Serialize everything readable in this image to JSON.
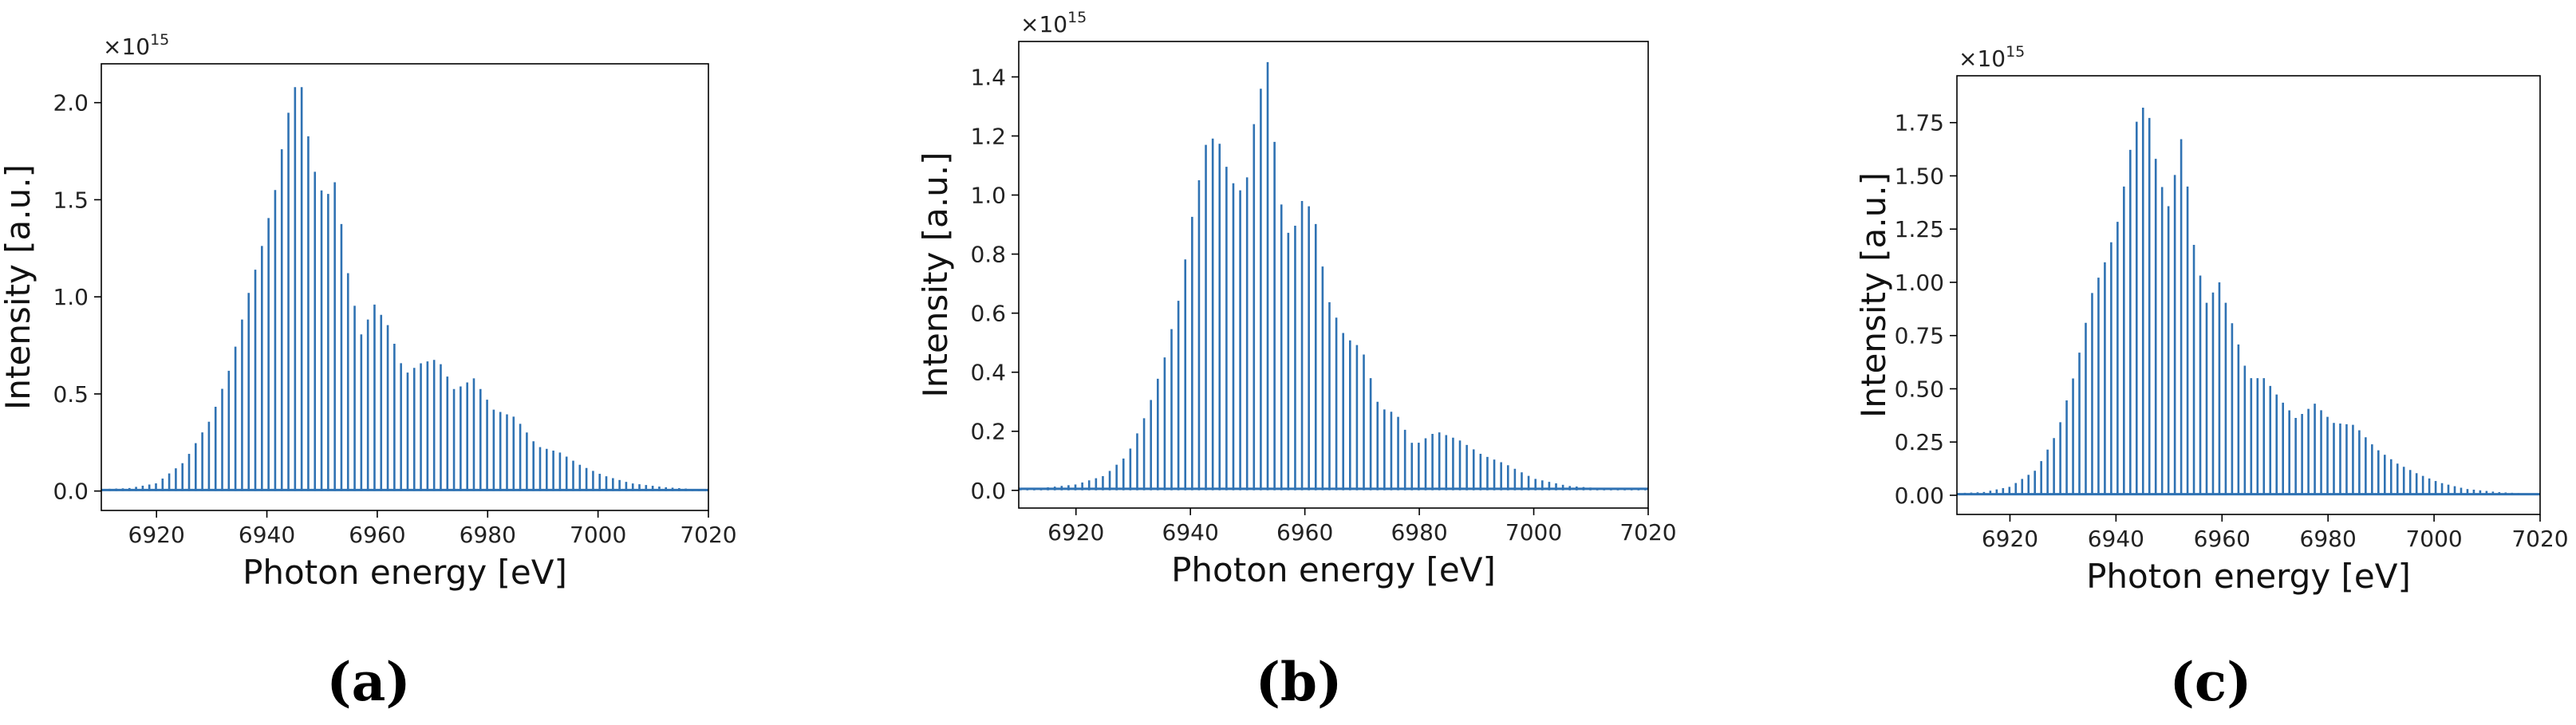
{
  "chart_data": [
    {
      "type": "bar",
      "panel_label": "(a)",
      "xlabel": "Photon energy [eV]",
      "ylabel": "Intensity [a.u.]",
      "y_multiplier": "×10",
      "y_exponent": "15",
      "xlim": [
        6910,
        7020
      ],
      "ylim": [
        -0.1,
        2.2
      ],
      "x_ticks": [
        6920,
        6940,
        6960,
        6980,
        7000,
        7020
      ],
      "y_ticks": [
        "0.0",
        "0.5",
        "1.0",
        "1.5",
        "2.0"
      ],
      "y_tick_values": [
        0.0,
        0.5,
        1.0,
        1.5,
        2.0
      ],
      "line_color": "#2f72b3",
      "spike_spacing_ev": 1.2,
      "peaks": [
        {
          "x": 6910.0,
          "y": 0.01
        },
        {
          "x": 6915.0,
          "y": 0.015
        },
        {
          "x": 6920.0,
          "y": 0.04
        },
        {
          "x": 6925.0,
          "y": 0.15
        },
        {
          "x": 6930.0,
          "y": 0.38
        },
        {
          "x": 6933.5,
          "y": 0.65
        },
        {
          "x": 6936.5,
          "y": 1.0
        },
        {
          "x": 6939.0,
          "y": 1.25
        },
        {
          "x": 6941.5,
          "y": 1.55
        },
        {
          "x": 6943.5,
          "y": 1.9
        },
        {
          "x": 6945.0,
          "y": 2.08
        },
        {
          "x": 6946.5,
          "y": 2.08
        },
        {
          "x": 6948.0,
          "y": 1.7
        },
        {
          "x": 6950.5,
          "y": 1.5
        },
        {
          "x": 6952.5,
          "y": 1.6
        },
        {
          "x": 6954.5,
          "y": 1.15
        },
        {
          "x": 6957.0,
          "y": 0.8
        },
        {
          "x": 6959.5,
          "y": 0.96
        },
        {
          "x": 6962.0,
          "y": 0.85
        },
        {
          "x": 6965.0,
          "y": 0.6
        },
        {
          "x": 6968.0,
          "y": 0.66
        },
        {
          "x": 6971.0,
          "y": 0.68
        },
        {
          "x": 6974.0,
          "y": 0.52
        },
        {
          "x": 6977.5,
          "y": 0.58
        },
        {
          "x": 6981.0,
          "y": 0.42
        },
        {
          "x": 6985.0,
          "y": 0.38
        },
        {
          "x": 6989.0,
          "y": 0.23
        },
        {
          "x": 6993.0,
          "y": 0.2
        },
        {
          "x": 6997.0,
          "y": 0.13
        },
        {
          "x": 7001.0,
          "y": 0.08
        },
        {
          "x": 7006.0,
          "y": 0.04
        },
        {
          "x": 7012.0,
          "y": 0.02
        },
        {
          "x": 7020.0,
          "y": 0.005
        }
      ]
    },
    {
      "type": "bar",
      "panel_label": "(b)",
      "xlabel": "Photon energy [eV]",
      "ylabel": "Intensity [a.u.]",
      "y_multiplier": "×10",
      "y_exponent": "15",
      "xlim": [
        6910,
        7020
      ],
      "ylim": [
        -0.06,
        1.52
      ],
      "x_ticks": [
        6920,
        6940,
        6960,
        6980,
        7000,
        7020
      ],
      "y_ticks": [
        "0.0",
        "0.2",
        "0.4",
        "0.6",
        "0.8",
        "1.0",
        "1.2",
        "1.4"
      ],
      "y_tick_values": [
        0.0,
        0.2,
        0.4,
        0.6,
        0.8,
        1.0,
        1.2,
        1.4
      ],
      "line_color": "#2f72b3",
      "spike_spacing_ev": 1.2,
      "peaks": [
        {
          "x": 6910.0,
          "y": 0.005
        },
        {
          "x": 6915.0,
          "y": 0.01
        },
        {
          "x": 6920.0,
          "y": 0.02
        },
        {
          "x": 6925.0,
          "y": 0.05
        },
        {
          "x": 6929.0,
          "y": 0.12
        },
        {
          "x": 6932.5,
          "y": 0.27
        },
        {
          "x": 6935.5,
          "y": 0.45
        },
        {
          "x": 6938.0,
          "y": 0.65
        },
        {
          "x": 6940.5,
          "y": 0.95
        },
        {
          "x": 6943.0,
          "y": 1.2
        },
        {
          "x": 6945.0,
          "y": 1.18
        },
        {
          "x": 6947.0,
          "y": 1.05
        },
        {
          "x": 6949.5,
          "y": 1.0
        },
        {
          "x": 6951.5,
          "y": 1.3
        },
        {
          "x": 6953.5,
          "y": 1.45
        },
        {
          "x": 6955.5,
          "y": 1.0
        },
        {
          "x": 6957.5,
          "y": 0.84
        },
        {
          "x": 6959.5,
          "y": 0.98
        },
        {
          "x": 6961.5,
          "y": 0.95
        },
        {
          "x": 6964.0,
          "y": 0.65
        },
        {
          "x": 6967.0,
          "y": 0.52
        },
        {
          "x": 6970.0,
          "y": 0.48
        },
        {
          "x": 6973.0,
          "y": 0.28
        },
        {
          "x": 6976.0,
          "y": 0.26
        },
        {
          "x": 6979.0,
          "y": 0.15
        },
        {
          "x": 6983.0,
          "y": 0.2
        },
        {
          "x": 6987.0,
          "y": 0.17
        },
        {
          "x": 6991.0,
          "y": 0.12
        },
        {
          "x": 6995.0,
          "y": 0.09
        },
        {
          "x": 7000.0,
          "y": 0.04
        },
        {
          "x": 7006.0,
          "y": 0.015
        },
        {
          "x": 7013.0,
          "y": 0.005
        },
        {
          "x": 7020.0,
          "y": 0.002
        }
      ]
    },
    {
      "type": "bar",
      "panel_label": "(c)",
      "xlabel": "Photon energy [eV]",
      "ylabel": "Intensity [a.u.]",
      "y_multiplier": "×10",
      "y_exponent": "15",
      "xlim": [
        6910,
        7020
      ],
      "ylim": [
        -0.09,
        1.97
      ],
      "x_ticks": [
        6920,
        6940,
        6960,
        6980,
        7000,
        7020
      ],
      "y_ticks": [
        "0.00",
        "0.25",
        "0.50",
        "0.75",
        "1.00",
        "1.25",
        "1.50",
        "1.75"
      ],
      "y_tick_values": [
        0.0,
        0.25,
        0.5,
        0.75,
        1.0,
        1.25,
        1.5,
        1.75
      ],
      "line_color": "#2f72b3",
      "spike_spacing_ev": 1.2,
      "peaks": [
        {
          "x": 6910.0,
          "y": 0.01
        },
        {
          "x": 6915.0,
          "y": 0.015
        },
        {
          "x": 6920.0,
          "y": 0.04
        },
        {
          "x": 6925.0,
          "y": 0.12
        },
        {
          "x": 6929.0,
          "y": 0.3
        },
        {
          "x": 6932.5,
          "y": 0.6
        },
        {
          "x": 6935.5,
          "y": 0.95
        },
        {
          "x": 6938.0,
          "y": 1.1
        },
        {
          "x": 6940.5,
          "y": 1.3
        },
        {
          "x": 6942.5,
          "y": 1.6
        },
        {
          "x": 6944.5,
          "y": 1.82
        },
        {
          "x": 6946.0,
          "y": 1.82
        },
        {
          "x": 6948.0,
          "y": 1.5
        },
        {
          "x": 6950.0,
          "y": 1.35
        },
        {
          "x": 6952.5,
          "y": 1.7
        },
        {
          "x": 6954.5,
          "y": 1.2
        },
        {
          "x": 6957.0,
          "y": 0.9
        },
        {
          "x": 6959.5,
          "y": 1.0
        },
        {
          "x": 6962.0,
          "y": 0.8
        },
        {
          "x": 6965.0,
          "y": 0.55
        },
        {
          "x": 6968.0,
          "y": 0.55
        },
        {
          "x": 6971.0,
          "y": 0.45
        },
        {
          "x": 6974.0,
          "y": 0.36
        },
        {
          "x": 6977.5,
          "y": 0.43
        },
        {
          "x": 6981.0,
          "y": 0.34
        },
        {
          "x": 6985.0,
          "y": 0.33
        },
        {
          "x": 6989.0,
          "y": 0.22
        },
        {
          "x": 6993.0,
          "y": 0.15
        },
        {
          "x": 6997.0,
          "y": 0.1
        },
        {
          "x": 7001.0,
          "y": 0.06
        },
        {
          "x": 7006.0,
          "y": 0.03
        },
        {
          "x": 7012.0,
          "y": 0.015
        },
        {
          "x": 7020.0,
          "y": 0.005
        }
      ]
    }
  ]
}
